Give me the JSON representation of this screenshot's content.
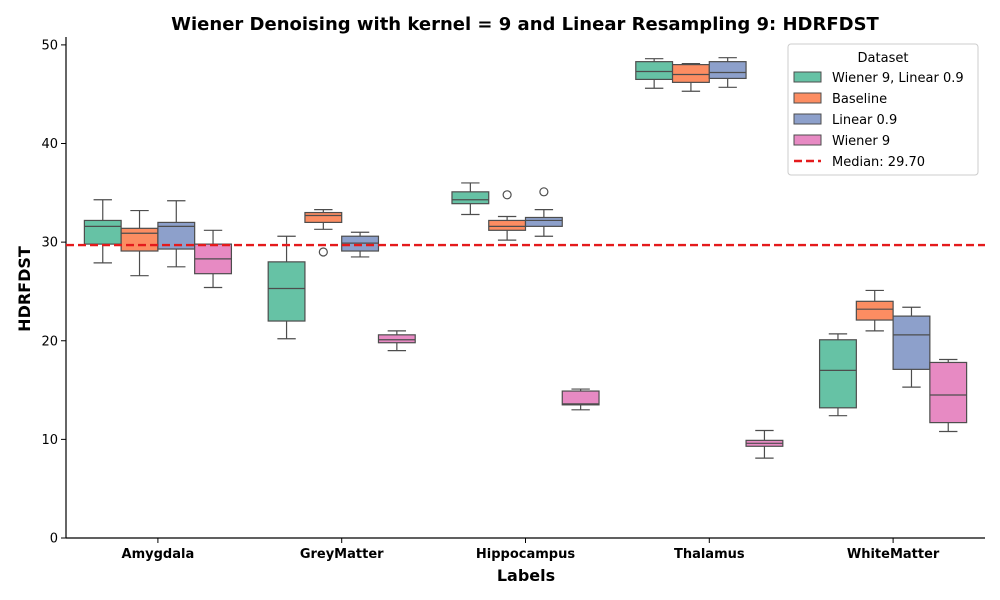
{
  "chart_data": {
    "type": "box",
    "title": "Wiener Denoising with kernel = 9 and Linear Resampling 9: HDRFDST",
    "xlabel": "Labels",
    "ylabel": "HDRFDST",
    "ylim": [
      0,
      50.8
    ],
    "yticks": [
      0,
      10,
      20,
      30,
      40,
      50
    ],
    "categories": [
      "Amygdala",
      "GreyMatter",
      "Hippocampus",
      "Thalamus",
      "WhiteMatter"
    ],
    "legend": {
      "title": "Dataset",
      "placement": "top-right"
    },
    "median_line": {
      "label": "Median: 29.70",
      "value": 29.7,
      "color": "#e41a1c"
    },
    "series": [
      {
        "name": "Wiener 9, Linear 0.9",
        "color": "#66c2a5",
        "boxes": [
          {
            "whislo": 27.9,
            "q1": 29.8,
            "med": 31.6,
            "q3": 32.2,
            "whishi": 34.3,
            "fliers": []
          },
          {
            "whislo": 20.2,
            "q1": 22.0,
            "med": 25.3,
            "q3": 28.0,
            "whishi": 30.6,
            "fliers": []
          },
          {
            "whislo": 32.8,
            "q1": 33.9,
            "med": 34.3,
            "q3": 35.1,
            "whishi": 36.0,
            "fliers": []
          },
          {
            "whislo": 45.6,
            "q1": 46.5,
            "med": 47.3,
            "q3": 48.3,
            "whishi": 48.6,
            "fliers": []
          },
          {
            "whislo": 12.4,
            "q1": 13.2,
            "med": 17.0,
            "q3": 20.1,
            "whishi": 20.7,
            "fliers": []
          }
        ]
      },
      {
        "name": "Baseline",
        "color": "#fc8d62",
        "boxes": [
          {
            "whislo": 26.6,
            "q1": 29.1,
            "med": 30.9,
            "q3": 31.4,
            "whishi": 33.2,
            "fliers": []
          },
          {
            "whislo": 31.3,
            "q1": 32.0,
            "med": 32.7,
            "q3": 33.0,
            "whishi": 33.3,
            "fliers": [
              29.0
            ]
          },
          {
            "whislo": 30.2,
            "q1": 31.2,
            "med": 31.6,
            "q3": 32.2,
            "whishi": 32.6,
            "fliers": [
              34.8
            ]
          },
          {
            "whislo": 45.3,
            "q1": 46.2,
            "med": 47.0,
            "q3": 48.0,
            "whishi": 48.1,
            "fliers": []
          },
          {
            "whislo": 21.0,
            "q1": 22.1,
            "med": 23.2,
            "q3": 24.0,
            "whishi": 25.1,
            "fliers": []
          }
        ]
      },
      {
        "name": "Linear 0.9",
        "color": "#8da0cb",
        "boxes": [
          {
            "whislo": 27.5,
            "q1": 29.3,
            "med": 31.6,
            "q3": 32.0,
            "whishi": 34.2,
            "fliers": []
          },
          {
            "whislo": 28.5,
            "q1": 29.1,
            "med": 29.9,
            "q3": 30.6,
            "whishi": 31.0,
            "fliers": []
          },
          {
            "whislo": 30.6,
            "q1": 31.6,
            "med": 32.2,
            "q3": 32.5,
            "whishi": 33.3,
            "fliers": [
              35.1
            ]
          },
          {
            "whislo": 45.7,
            "q1": 46.6,
            "med": 47.2,
            "q3": 48.3,
            "whishi": 48.7,
            "fliers": []
          },
          {
            "whislo": 15.3,
            "q1": 17.1,
            "med": 20.6,
            "q3": 22.5,
            "whishi": 23.4,
            "fliers": []
          }
        ]
      },
      {
        "name": "Wiener 9",
        "color": "#e78ac3",
        "boxes": [
          {
            "whislo": 25.4,
            "q1": 26.8,
            "med": 28.3,
            "q3": 29.8,
            "whishi": 31.2,
            "fliers": []
          },
          {
            "whislo": 19.0,
            "q1": 19.8,
            "med": 20.1,
            "q3": 20.6,
            "whishi": 21.0,
            "fliers": []
          },
          {
            "whislo": 13.0,
            "q1": 13.5,
            "med": 13.6,
            "q3": 14.9,
            "whishi": 15.1,
            "fliers": []
          },
          {
            "whislo": 8.1,
            "q1": 9.3,
            "med": 9.6,
            "q3": 9.9,
            "whishi": 10.9,
            "fliers": []
          },
          {
            "whislo": 10.8,
            "q1": 11.7,
            "med": 14.5,
            "q3": 17.8,
            "whishi": 18.1,
            "fliers": []
          }
        ]
      }
    ]
  }
}
